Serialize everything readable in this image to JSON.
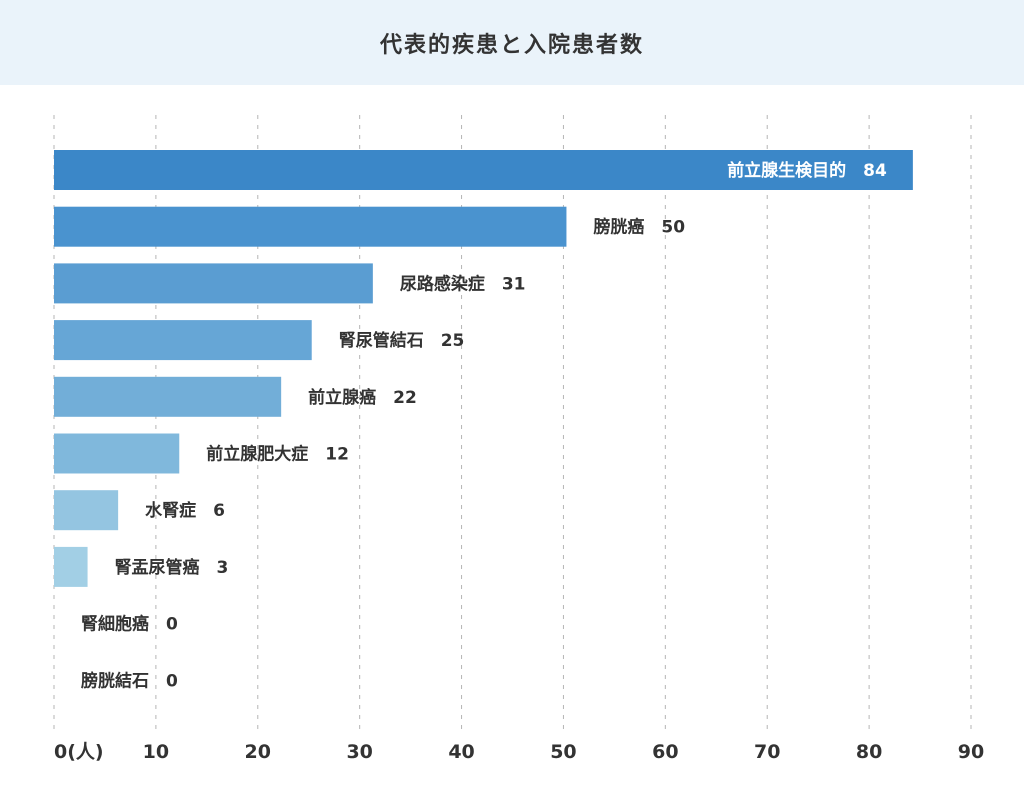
{
  "chart_data": {
    "type": "bar",
    "orientation": "horizontal",
    "title": "代表的疾患と入院患者数",
    "xlabel": "",
    "ylabel": "",
    "unit_label": "(人)",
    "xlim": [
      0,
      90
    ],
    "xticks": [
      0,
      10,
      20,
      30,
      40,
      50,
      60,
      70,
      80,
      90
    ],
    "grid": true,
    "categories": [
      "前立腺生検目的",
      "膀胱癌",
      "尿路感染症",
      "腎尿管結石",
      "前立腺癌",
      "前立腺肥大症",
      "水腎症",
      "腎盂尿管癌",
      "腎細胞癌",
      "膀胱結石"
    ],
    "values": [
      84,
      50,
      31,
      25,
      22,
      12,
      6,
      3,
      0,
      0
    ],
    "colors": [
      "#3b87c8",
      "#4a93cf",
      "#5a9dd2",
      "#66a6d6",
      "#72aed8",
      "#80b8dc",
      "#94c5e1",
      "#a2cfe5",
      "#a8d3e8",
      "#a8d3e8"
    ]
  }
}
